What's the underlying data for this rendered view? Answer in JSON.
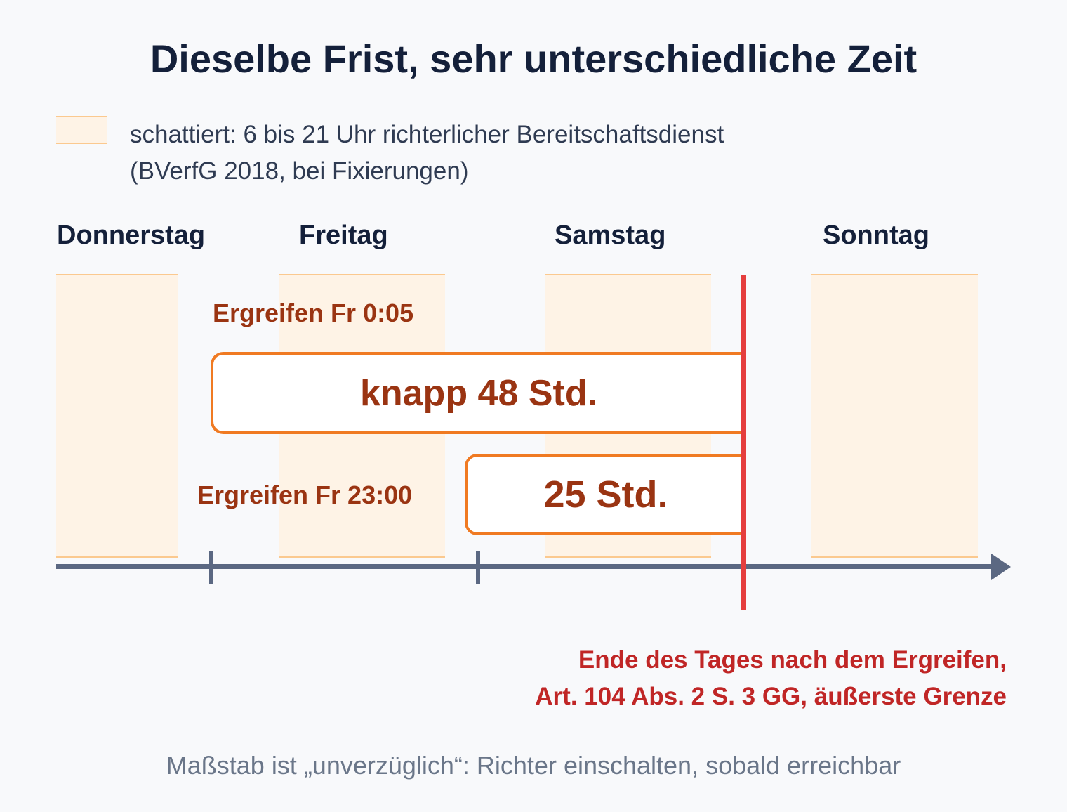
{
  "title": "Dieselbe Frist, sehr unterschiedliche Zeit",
  "legend": {
    "line1": "schattiert: 6 bis 21 Uhr richterlicher Bereitschaftsdienst",
    "line2": "(BVerfG 2018, bei Fixierungen)"
  },
  "days": [
    "Donnerstag",
    "Freitag",
    "Samstag",
    "Sonntag"
  ],
  "scenarios": [
    {
      "label": "Ergreifen Fr 0:05",
      "duration": "knapp 48 Std."
    },
    {
      "label": "Ergreifen Fr 23:00",
      "duration": "25 Std."
    }
  ],
  "deadline_note": {
    "line1": "Ende des Tages nach dem Ergreifen,",
    "line2": "Art. 104 Abs. 2 S. 3 GG, äußerste Grenze"
  },
  "footer": "Maßstab ist „unverzüglich“: Richter einschalten, sobald erreichbar",
  "colors": {
    "shade": "#fef3e6",
    "shade_border": "#fbc98f",
    "bar_border": "#f07a22",
    "label_text": "#9a3412",
    "deadline": "#e53e3e",
    "axis": "#5b6882"
  }
}
